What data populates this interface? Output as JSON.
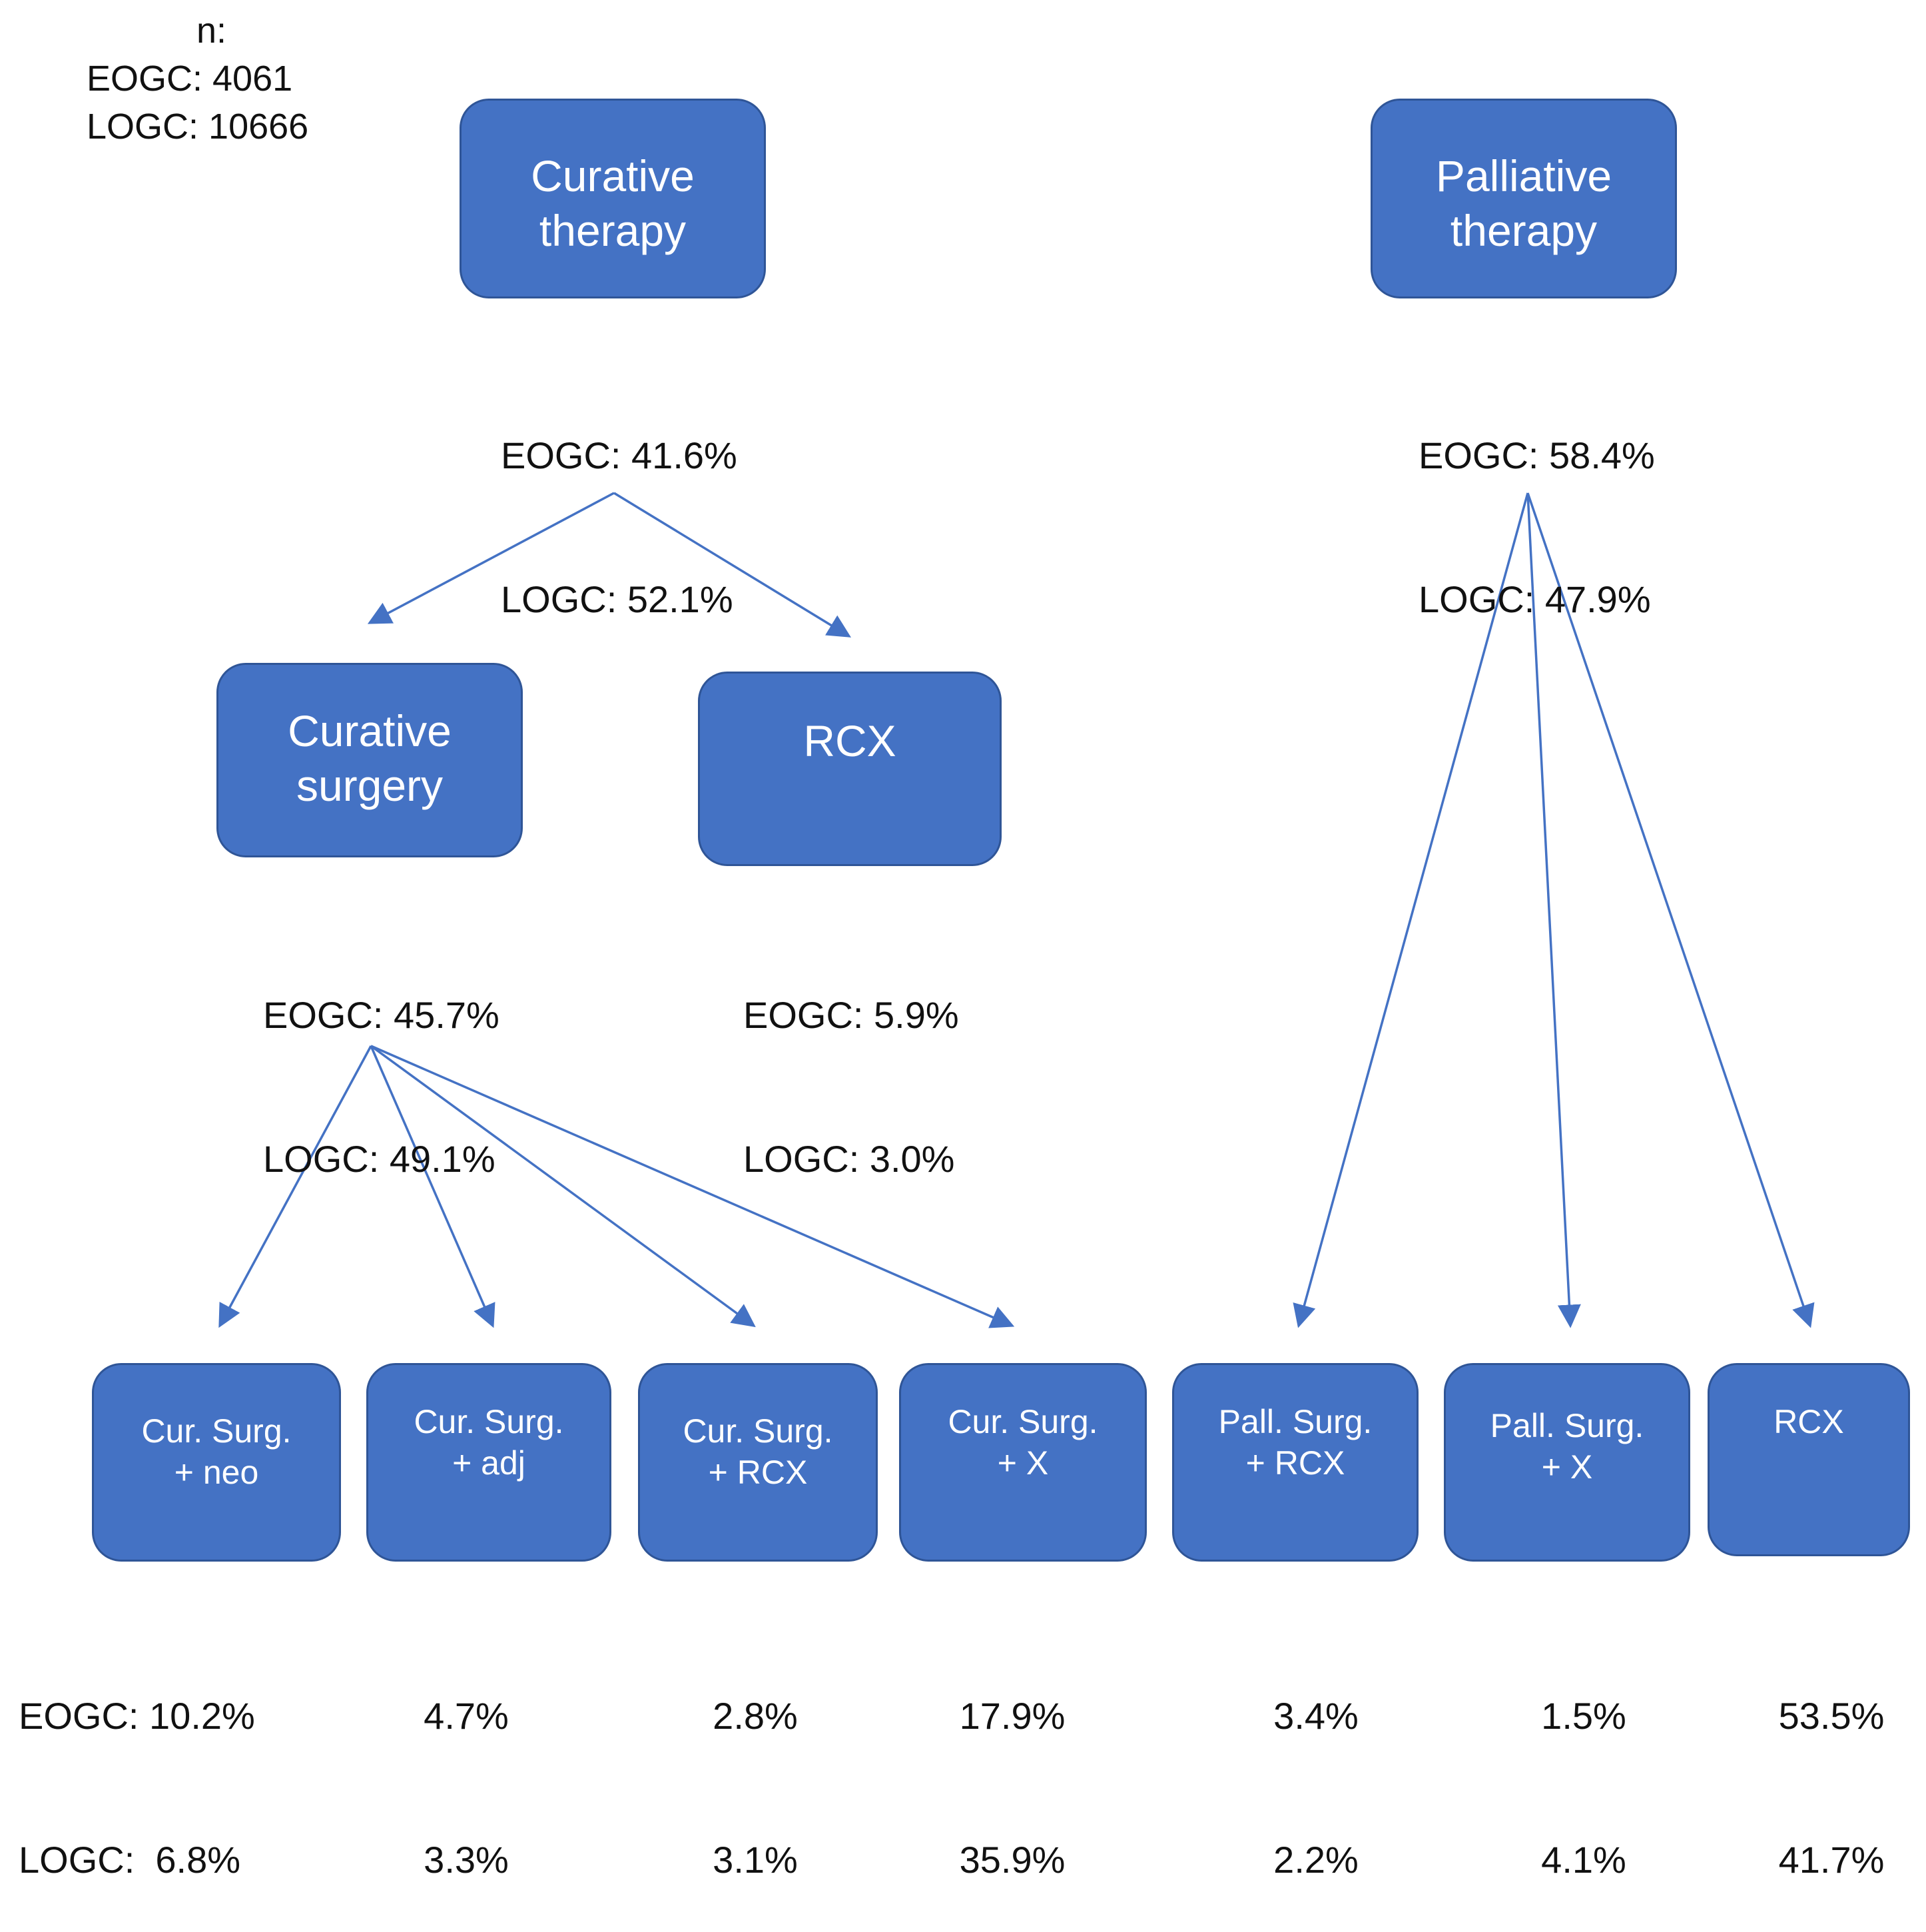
{
  "sample_size": {
    "label": "n:",
    "lines": [
      "EOGC: 4061",
      "LOGC: 10666"
    ]
  },
  "nodes": {
    "curative_therapy": {
      "lines": [
        "Curative",
        "therapy"
      ],
      "stats": [
        "EOGC: 41.6%",
        "LOGC: 52.1%"
      ]
    },
    "palliative_therapy": {
      "lines": [
        "Palliative",
        "therapy"
      ],
      "stats": [
        "EOGC: 58.4%",
        "LOGC: 47.9%"
      ]
    },
    "curative_surgery": {
      "lines": [
        "Curative",
        "surgery"
      ],
      "stats": [
        "EOGC: 45.7%",
        "LOGC: 49.1%"
      ]
    },
    "rcx_curative": {
      "lines": [
        "RCX"
      ],
      "stats": [
        "EOGC: 5.9%",
        "LOGC: 3.0%"
      ]
    }
  },
  "leaves": [
    {
      "lines": [
        "Cur. Surg.",
        "+ neo"
      ],
      "stats": [
        "EOGC: 10.2%",
        "LOGC:  6.8%"
      ]
    },
    {
      "lines": [
        "Cur. Surg.",
        "+ adj"
      ],
      "stats": [
        "4.7%",
        "3.3%"
      ]
    },
    {
      "lines": [
        "Cur. Surg.",
        "+ RCX"
      ],
      "stats": [
        "2.8%",
        "3.1%"
      ]
    },
    {
      "lines": [
        "Cur. Surg.",
        "+ X"
      ],
      "stats": [
        "17.9%",
        "35.9%"
      ]
    },
    {
      "lines": [
        "Pall. Surg.",
        "+ RCX"
      ],
      "stats": [
        "3.4%",
        "2.2%"
      ]
    },
    {
      "lines": [
        "Pall. Surg.",
        "+ X"
      ],
      "stats": [
        "1.5%",
        "4.1%"
      ]
    },
    {
      "lines": [
        "RCX"
      ],
      "stats": [
        "53.5%",
        "41.7%"
      ]
    }
  ],
  "colors": {
    "box_fill": "#4472c4",
    "box_border": "#2f5597",
    "arrow": "#4472c4",
    "text": "#111111"
  }
}
